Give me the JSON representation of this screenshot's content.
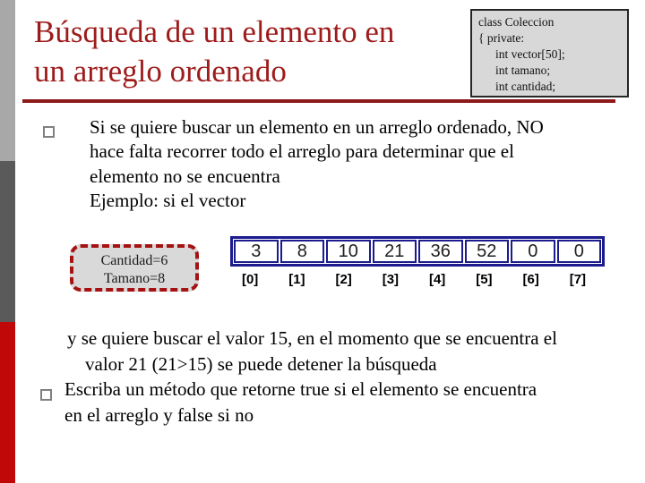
{
  "colors": {
    "title_maroon": "#9e1b1b",
    "rule_maroon": "#8d1a1a",
    "bar_light_gray": "#a8a8a8",
    "bar_dark_gray": "#5a5a5a",
    "bar_red": "#c00808",
    "array_navy": "#1b1b8e",
    "box_gray_bg": "#d9d9d9",
    "dashed_red": "#a61212"
  },
  "title": {
    "text": "Búsqueda de un elemento en\nun arreglo ordenado"
  },
  "code_box": {
    "line1": "class Coleccion",
    "line2": "{ private:",
    "line3": "int vector[50];",
    "line4": "int tamano;",
    "line5": "int cantidad;"
  },
  "intro": {
    "text": "Si se quiere buscar un elemento en un arreglo ordenado, NO\nhace falta recorrer todo el arreglo para determinar que el\nelemento no se encuentra\nEjemplo: si el vector"
  },
  "label_box": {
    "line1": "Cantidad=6",
    "line2": "Tamano=8"
  },
  "array": {
    "values": [
      "3",
      "8",
      "10",
      "21",
      "36",
      "52",
      "0",
      "0"
    ],
    "indices": [
      "[0]",
      "[1]",
      "[2]",
      "[3]",
      "[4]",
      "[5]",
      "[6]",
      "[7]"
    ]
  },
  "search_note": {
    "text": "y se quiere buscar el valor 15, en el momento que se encuentra el\nvalor 21 (21>15) se puede detener la búsqueda"
  },
  "exercise": {
    "text": "Escriba un método que retorne true si el elemento se encuentra\nen el arreglo y false si no"
  }
}
